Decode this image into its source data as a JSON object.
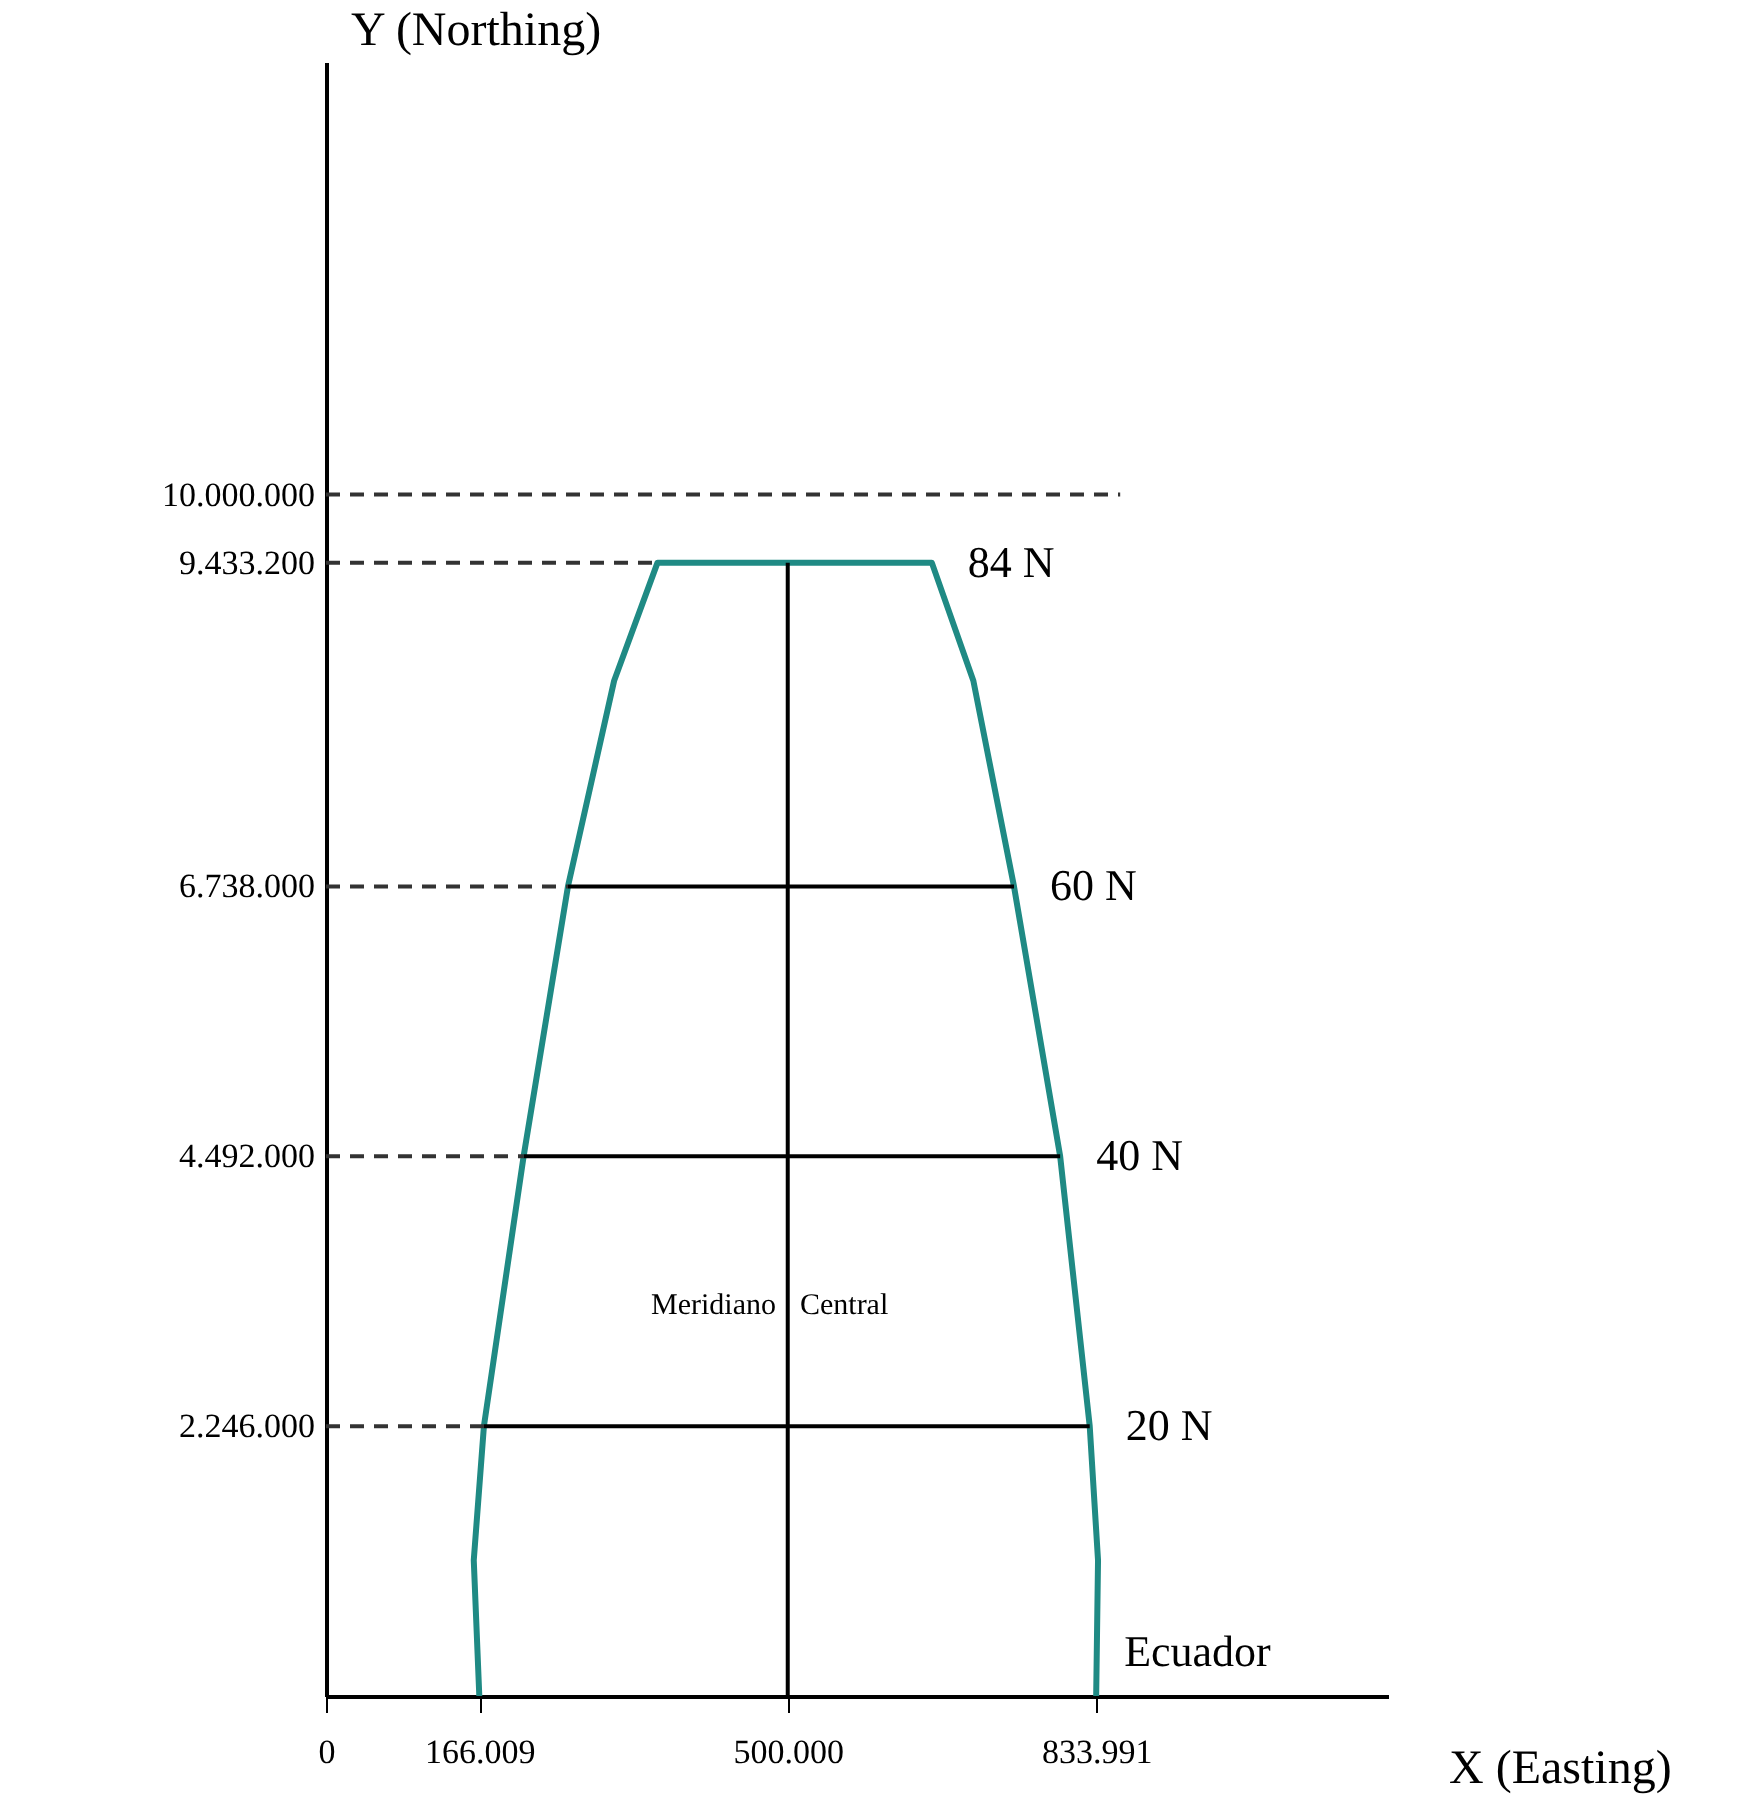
{
  "chart_data": {
    "type": "line",
    "xlabel": "X (Easting)",
    "ylabel": "Y (Northing)",
    "xlim": [
      0,
      1150000
    ],
    "ylim": [
      0,
      13600000
    ],
    "xticks": [
      {
        "value": 0,
        "label": "0"
      },
      {
        "value": 166009,
        "label": "166.009"
      },
      {
        "value": 500000,
        "label": "500.000"
      },
      {
        "value": 833991,
        "label": "833.991"
      }
    ],
    "yticks": [
      {
        "value": 2246000,
        "label": "2.246.000"
      },
      {
        "value": 4492000,
        "label": "4.492.000"
      },
      {
        "value": 6738000,
        "label": "6.738.000"
      },
      {
        "value": 9433200,
        "label": "9.433.200"
      },
      {
        "value": 10000000,
        "label": "10.000.000"
      }
    ],
    "grid": false,
    "marker": "none",
    "series": [
      {
        "color": "#1f8a84",
        "line_style": "solid",
        "x": [
          166009,
          160000,
          171000,
          214000,
          262000,
          312000,
          359000,
          656000,
          701000,
          745000,
          795000,
          827000,
          836000,
          833991
        ],
        "values": [
          0,
          1130000,
          2246000,
          4492000,
          6738000,
          8450000,
          9433200,
          9433200,
          8450000,
          6738000,
          4492000,
          2246000,
          1130000,
          0
        ]
      },
      {
        "color": "#000000",
        "line_style": "solid",
        "x": [
          500000,
          500000
        ],
        "values": [
          0,
          9433200
        ]
      },
      {
        "color": "#000000",
        "line_style": "solid",
        "x": [
          171000,
          827000
        ],
        "values": [
          2246000,
          2246000
        ]
      },
      {
        "color": "#000000",
        "line_style": "solid",
        "x": [
          214000,
          795000
        ],
        "values": [
          4492000,
          4492000
        ]
      },
      {
        "color": "#000000",
        "line_style": "solid",
        "x": [
          262000,
          745000
        ],
        "values": [
          6738000,
          6738000
        ]
      },
      {
        "color": "#333333",
        "line_style": "dashed",
        "x": [
          0,
          171000
        ],
        "values": [
          2246000,
          2246000
        ]
      },
      {
        "color": "#333333",
        "line_style": "dashed",
        "x": [
          0,
          214000
        ],
        "values": [
          4492000,
          4492000
        ]
      },
      {
        "color": "#333333",
        "line_style": "dashed",
        "x": [
          0,
          262000
        ],
        "values": [
          6738000,
          6738000
        ]
      },
      {
        "color": "#333333",
        "line_style": "dashed",
        "x": [
          0,
          359000
        ],
        "values": [
          9433200,
          9433200
        ]
      },
      {
        "color": "#333333",
        "line_style": "dashed",
        "x": [
          0,
          860000
        ],
        "values": [
          10000000,
          10000000
        ]
      }
    ],
    "annotations": [
      {
        "text": "84 N",
        "x": 656000,
        "y": 9433200
      },
      {
        "text": "60 N",
        "x": 745000,
        "y": 6738000
      },
      {
        "text": "40 N",
        "x": 795000,
        "y": 4492000
      },
      {
        "text": "20 N",
        "x": 827000,
        "y": 2246000
      },
      {
        "text": "Ecuador",
        "x": 833991,
        "y": 0
      },
      "Meridiano",
      "Central"
    ]
  }
}
